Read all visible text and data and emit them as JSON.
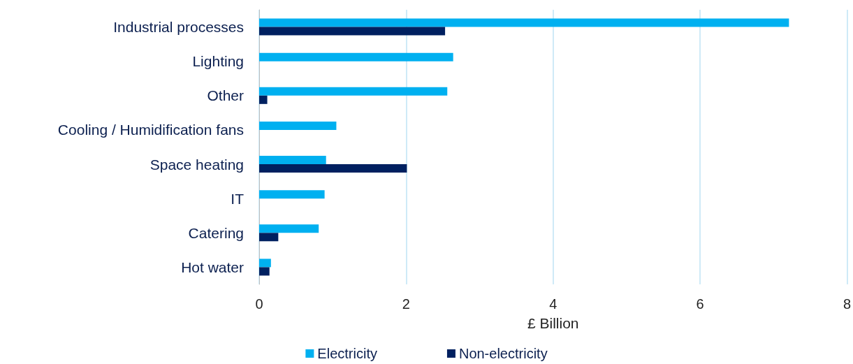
{
  "chart_data": {
    "type": "bar",
    "orientation": "horizontal",
    "categories": [
      "Industrial processes",
      "Lighting",
      "Other",
      "Cooling / Humidification fans",
      "Space heating",
      "IT",
      "Catering",
      "Hot water"
    ],
    "series": [
      {
        "name": "Electricity",
        "color": "#00b0f0",
        "values": [
          7.21,
          2.64,
          2.56,
          1.05,
          0.91,
          0.89,
          0.81,
          0.16
        ]
      },
      {
        "name": "Non-electricity",
        "color": "#002060",
        "values": [
          2.53,
          null,
          0.11,
          null,
          2.01,
          null,
          0.26,
          0.14
        ]
      }
    ],
    "xlabel": "£ Billion",
    "xlim": [
      0,
      8
    ],
    "xticks": [
      0,
      2,
      4,
      6,
      8
    ],
    "grid": "x",
    "legend": "bottom"
  }
}
